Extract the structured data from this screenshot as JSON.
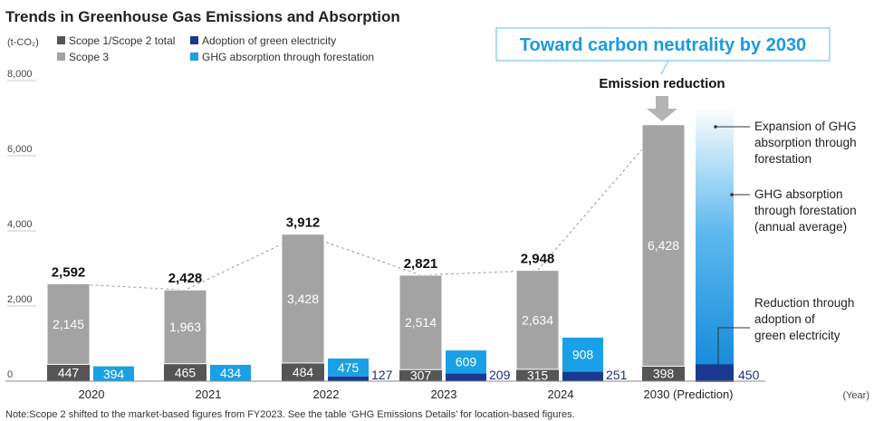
{
  "title": "Trends in Greenhouse Gas Emissions and Absorption",
  "unit_label": "(t-CO₂)",
  "year_label": "(Year)",
  "note": "Note:Scope 2 shifted to the market-based figures from FY2023. See the table ‘GHG Emissions Details’ for location-based figures.",
  "headline": "Toward carbon neutrality by 2030",
  "emission_reduction_label": "Emission reduction",
  "annotations": {
    "expansion": [
      "Expansion of GHG",
      "absorption through",
      "forestation"
    ],
    "ghg_absorption": [
      "GHG absorption",
      "through forestation",
      "(annual average)"
    ],
    "reduction": [
      "Reduction through",
      "adoption of",
      "green electricity"
    ]
  },
  "colors": {
    "scope12": "#555555",
    "scope3": "#a3a3a3",
    "green_elec": "#1b3a8f",
    "forestation": "#1aa0e6",
    "headline": "#1a9ae0"
  },
  "chart_data": {
    "type": "bar",
    "categories": [
      "2020",
      "2021",
      "2022",
      "2023",
      "2024",
      "2030 (Prediction)"
    ],
    "series": [
      {
        "name": "Scope 1/Scope 2 total",
        "values": [
          447,
          465,
          484,
          307,
          315,
          398
        ]
      },
      {
        "name": "Scope 3",
        "values": [
          2145,
          1963,
          3428,
          2514,
          2634,
          6428
        ]
      },
      {
        "name": "Adoption of green electricity",
        "values": [
          null,
          null,
          127,
          209,
          251,
          450
        ]
      },
      {
        "name": "GHG absorption through forestation",
        "values": [
          394,
          434,
          475,
          609,
          908,
          null
        ]
      }
    ],
    "totals": [
      2592,
      2428,
      3912,
      2821,
      2948,
      null
    ],
    "yticks": [
      0,
      2000,
      4000,
      6000,
      8000
    ],
    "ytick_labels": [
      "0",
      "2,000",
      "4,000",
      "6,000",
      "8,000"
    ],
    "ylim": [
      0,
      8000
    ],
    "grid": true,
    "legend": "top-left"
  }
}
